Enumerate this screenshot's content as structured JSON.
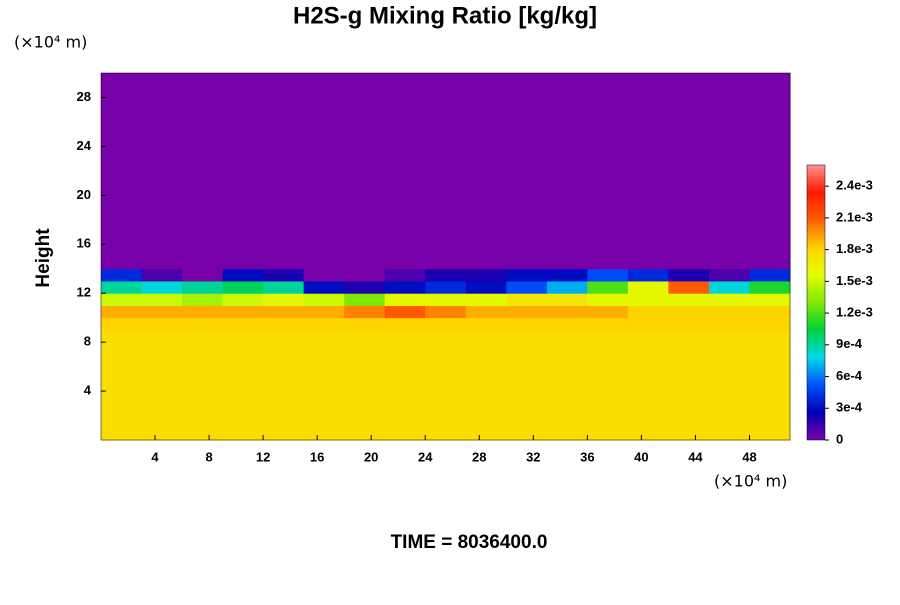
{
  "chart_data": {
    "type": "heatmap",
    "title": "H2S-g Mixing Ratio [kg/kg]",
    "y_label": "Height",
    "x_unit": "(×10⁴ m)",
    "y_unit": "(×10⁴ m)",
    "time_label": "TIME = 8036400.0",
    "xlim": [
      0,
      51
    ],
    "ylim": [
      0,
      30
    ],
    "xticks": [
      4,
      8,
      12,
      16,
      20,
      24,
      28,
      32,
      36,
      40,
      44,
      48
    ],
    "yticks": [
      4,
      8,
      12,
      16,
      20,
      24,
      28
    ],
    "x_edges": [
      0,
      3,
      6,
      9,
      12,
      15,
      18,
      21,
      24,
      27,
      30,
      33,
      36,
      39,
      42,
      45,
      48,
      51
    ],
    "y_edges": [
      0,
      9,
      10,
      11,
      12,
      13,
      14,
      30
    ],
    "values": [
      [
        0.00175,
        0.00175,
        0.00175,
        0.00175,
        0.00175,
        0.00175,
        0.00175,
        0.00175,
        0.00175,
        0.00175,
        0.00175,
        0.00175,
        0.00175,
        0.00175,
        0.00175,
        0.00175,
        0.00175
      ],
      [
        0.0018,
        0.0018,
        0.0018,
        0.0018,
        0.0018,
        0.0018,
        0.0018,
        0.0018,
        0.0018,
        0.0018,
        0.0018,
        0.0018,
        0.0018,
        0.0018,
        0.0018,
        0.0018,
        0.0018
      ],
      [
        0.0019,
        0.0019,
        0.0019,
        0.0019,
        0.0019,
        0.0019,
        0.002,
        0.0021,
        0.002,
        0.0019,
        0.0019,
        0.0019,
        0.0019,
        0.0018,
        0.0018,
        0.0018,
        0.0018
      ],
      [
        0.0015,
        0.0015,
        0.0014,
        0.0015,
        0.0016,
        0.0015,
        0.0013,
        0.0016,
        0.0016,
        0.0016,
        0.0017,
        0.0017,
        0.0016,
        0.0016,
        0.0016,
        0.0016,
        0.0016
      ],
      [
        0.0009,
        0.0008,
        0.0009,
        0.001,
        0.0009,
        0.0003,
        0.0002,
        0.0003,
        0.0004,
        0.0003,
        0.0005,
        0.0007,
        0.0012,
        0.0016,
        0.0021,
        0.0008,
        0.0011
      ],
      [
        0.0004,
        0.0001,
        0,
        0.0003,
        0.0002,
        0,
        0,
        0.0001,
        0.0002,
        0.0002,
        0.0003,
        0.0003,
        0.0005,
        0.0004,
        0.0002,
        0.0001,
        0.0004
      ],
      [
        0,
        0,
        0,
        0,
        0,
        0,
        0,
        0,
        0,
        0,
        0,
        0,
        0,
        0,
        0,
        0,
        0
      ]
    ],
    "clim": [
      0,
      0.0026
    ],
    "cticks": [
      0,
      {
        "value": 0.0003,
        "label": "3e-4"
      },
      {
        "value": 0.0006,
        "label": "6e-4"
      },
      {
        "value": 0.0009,
        "label": "9e-4"
      },
      {
        "value": 0.0012,
        "label": "1.2e-3"
      },
      {
        "value": 0.0015,
        "label": "1.5e-3"
      },
      {
        "value": 0.0018,
        "label": "1.8e-3"
      },
      {
        "value": 0.0021,
        "label": "2.1e-3"
      },
      {
        "value": 0.0024,
        "label": "2.4e-3"
      }
    ],
    "colormap": [
      "#7800a8",
      "#0000b4",
      "#0050ff",
      "#00d8e8",
      "#00d040",
      "#80e800",
      "#e0ff00",
      "#ffd000",
      "#ff6000",
      "#ff1800",
      "#ff9090"
    ]
  }
}
